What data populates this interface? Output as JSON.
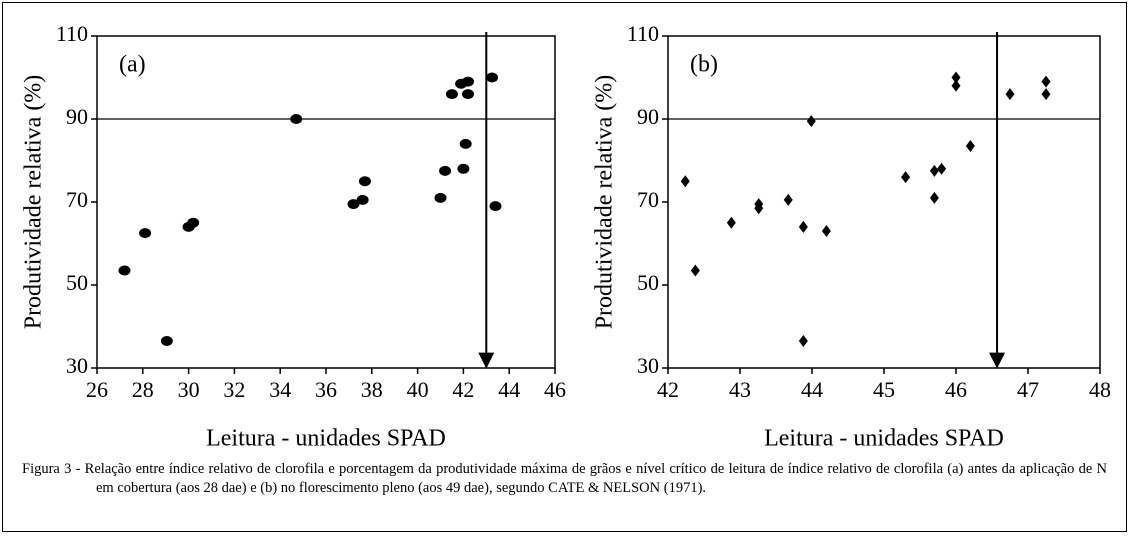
{
  "chart_data": [
    {
      "type": "scatter",
      "panel_label": "(a)",
      "marker": "circle",
      "color": "#000000",
      "x_label": "Leitura - unidades SPAD",
      "y_label": "Produtividade relativa (%)",
      "x": [
        27.2,
        28.1,
        29.05,
        30.0,
        30.2,
        34.7,
        37.2,
        37.6,
        37.7,
        41.0,
        41.2,
        41.5,
        41.9,
        42.2,
        42.2,
        42.1,
        42.0,
        43.25,
        43.4
      ],
      "values": [
        53.5,
        62.5,
        36.5,
        64,
        65,
        90,
        69.5,
        70.5,
        75,
        71,
        77.5,
        96,
        98.5,
        99,
        96,
        84,
        78,
        100,
        69
      ],
      "xlim": [
        26,
        46
      ],
      "xticks": [
        26,
        28,
        30,
        32,
        34,
        36,
        38,
        40,
        42,
        44,
        46
      ],
      "ylim": [
        30,
        110
      ],
      "yticks": [
        30,
        50,
        70,
        90,
        110
      ],
      "reference_lines": {
        "y": 90,
        "x": 43.0
      }
    },
    {
      "type": "scatter",
      "panel_label": "(b)",
      "marker": "diamond",
      "color": "#000000",
      "x_label": "Leitura - unidades SPAD",
      "y_label": "Produtividade relativa (%)",
      "x": [
        42.24,
        42.38,
        42.88,
        43.26,
        43.26,
        43.67,
        43.88,
        43.88,
        43.99,
        44.2,
        45.3,
        45.7,
        45.8,
        45.7,
        46.0,
        46.0,
        46.2,
        46.75,
        47.25,
        47.25
      ],
      "values": [
        75,
        53.5,
        65,
        69.5,
        68.5,
        70.5,
        64,
        36.5,
        89.5,
        63,
        76,
        77.5,
        78,
        71,
        98,
        100,
        83.5,
        96,
        99,
        96
      ],
      "xlim": [
        42,
        48
      ],
      "xticks": [
        42,
        43,
        44,
        45,
        46,
        47,
        48
      ],
      "ylim": [
        30,
        110
      ],
      "yticks": [
        30,
        50,
        70,
        90,
        110
      ],
      "reference_lines": {
        "y": 90,
        "x": 46.57
      }
    }
  ],
  "caption": "Figura 3 - Relação entre índice relativo de clorofila e porcentagem da produtividade máxima de grãos e nível crítico de leitura de índice relativo de clorofila (a) antes da aplicação de N em cobertura (aos 28 dae) e (b) no florescimento pleno (aos 49 dae), segundo CATE & NELSON (1971)."
}
